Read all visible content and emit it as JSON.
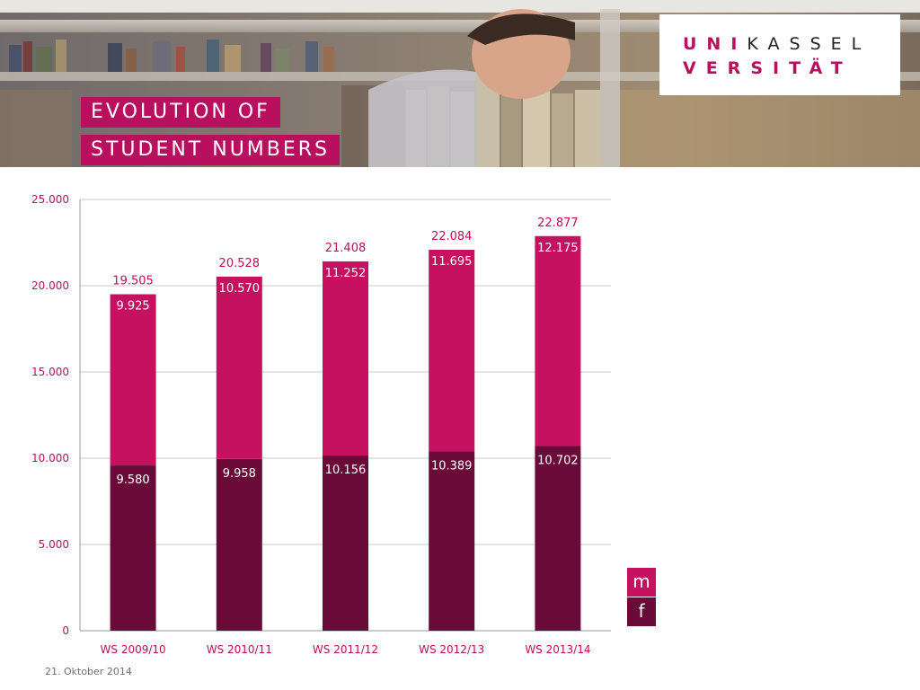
{
  "header": {
    "title_lines": [
      "EVOLUTION OF",
      "STUDENT NUMBERS"
    ],
    "logo": {
      "line1_a": "UNI",
      "line1_b": "KASSEL",
      "line2_a": "VERSIT",
      "line2_b": "ÄT"
    }
  },
  "footer": {
    "date": "21. Oktober 2014"
  },
  "colors": {
    "m": "#c5115f",
    "f": "#6a0a38",
    "accent": "#b8105f"
  },
  "chart_data": {
    "type": "bar",
    "stacked": true,
    "categories": [
      "WS 2009/10",
      "WS 2010/11",
      "WS 2011/12",
      "WS 2012/13",
      "WS 2013/14"
    ],
    "series": [
      {
        "name": "f",
        "values": [
          9580,
          9958,
          10156,
          10389,
          10702
        ]
      },
      {
        "name": "m",
        "values": [
          9925,
          10570,
          11252,
          11695,
          12175
        ]
      }
    ],
    "totals": [
      19505,
      20528,
      21408,
      22084,
      22877
    ],
    "value_labels": {
      "f": [
        "9.580",
        "9.958",
        "10.156",
        "10.389",
        "10.702"
      ],
      "m": [
        "9.925",
        "10.570",
        "11.252",
        "11.695",
        "12.175"
      ],
      "totals": [
        "19.505",
        "20.528",
        "21.408",
        "22.084",
        "22.877"
      ]
    },
    "yticks": [
      0,
      5000,
      10000,
      15000,
      20000,
      25000
    ],
    "ytick_labels": [
      "0",
      "5.000",
      "10.000",
      "15.000",
      "20.000",
      "25.000"
    ],
    "ylim": [
      0,
      25000
    ],
    "grid": true,
    "legend": {
      "position": "bottom-right",
      "entries": [
        "m",
        "f"
      ]
    }
  }
}
